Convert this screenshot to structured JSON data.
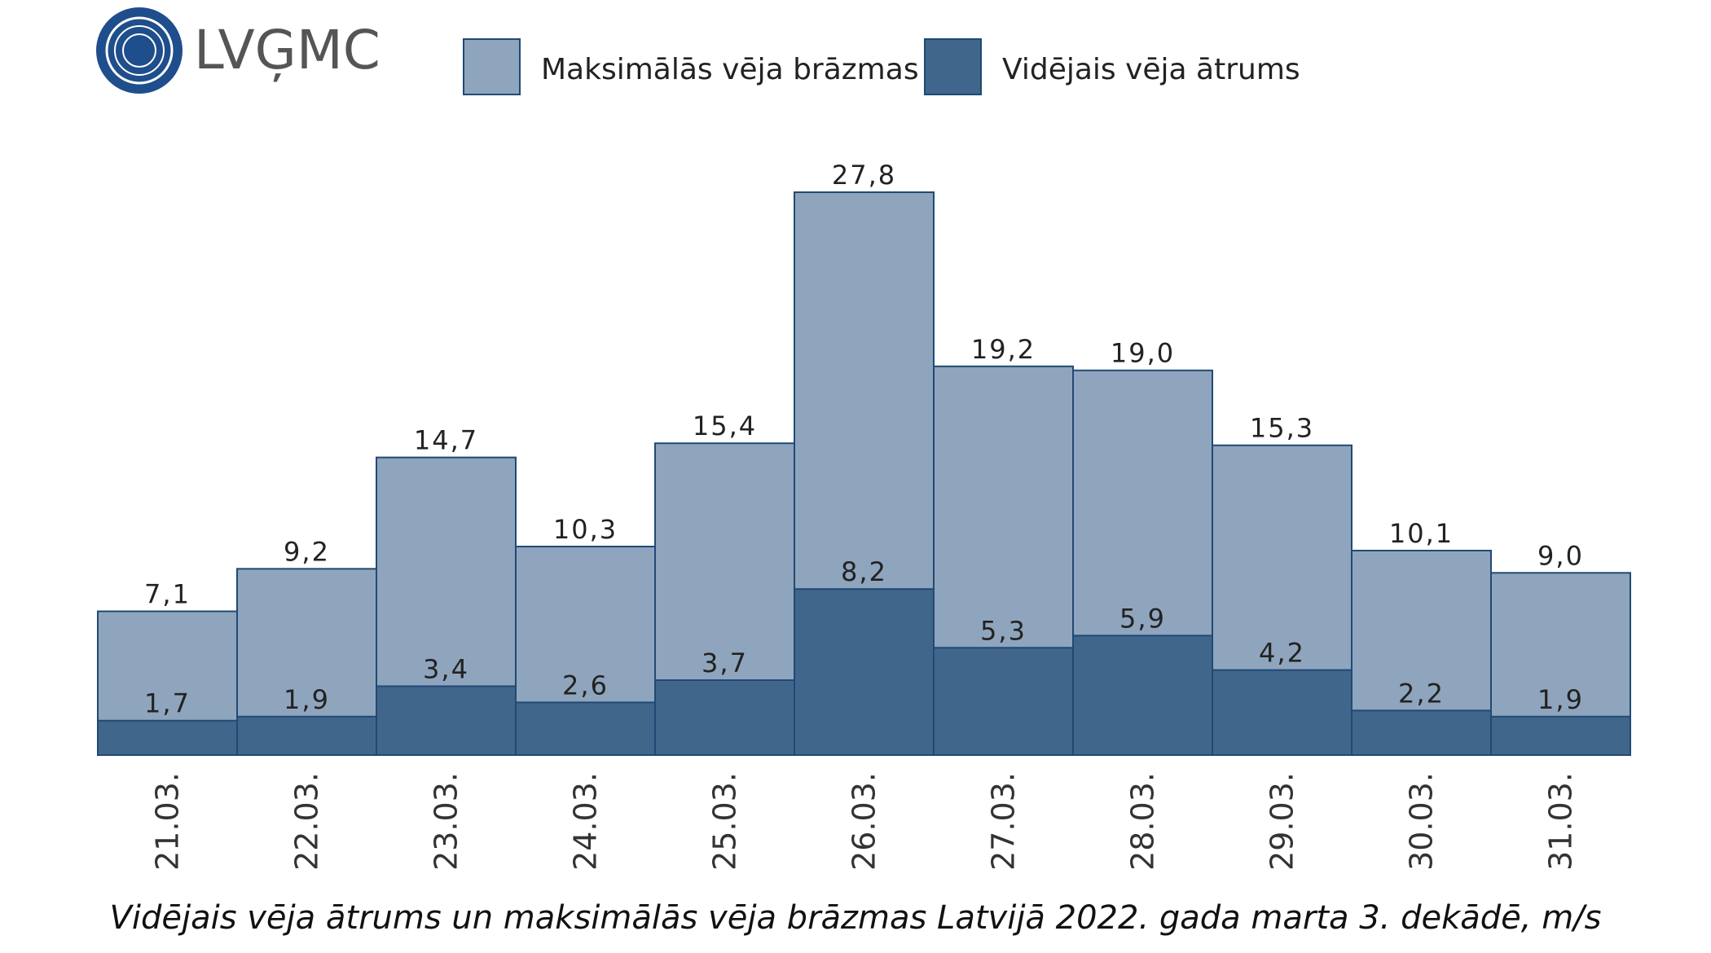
{
  "chart_data": {
    "type": "bar",
    "mode": "overlap",
    "logo": "LVĢMC",
    "title": "Vidējais vēja ātrums un maksimālās vēja brāzmas Latvijā 2022. gada marta 3. dekādē, m/s",
    "categories": [
      "21.03.",
      "22.03.",
      "23.03.",
      "24.03.",
      "25.03.",
      "26.03.",
      "27.03.",
      "28.03.",
      "29.03.",
      "30.03.",
      "31.03."
    ],
    "series": [
      {
        "name": "Maksimālās vēja brāzmas",
        "color": "#8fa5bd",
        "values": [
          7.1,
          9.2,
          14.7,
          10.3,
          15.4,
          27.8,
          19.2,
          19.0,
          15.3,
          10.1,
          9.0
        ],
        "value_labels": [
          "7,1",
          "9,2",
          "14,7",
          "10,3",
          "15,4",
          "27,8",
          "19,2",
          "19,0",
          "15,3",
          "10,1",
          "9,0"
        ]
      },
      {
        "name": "Vidējais vēja ātrums",
        "color": "#41668c",
        "values": [
          1.7,
          1.9,
          3.4,
          2.6,
          3.7,
          8.2,
          5.3,
          5.9,
          4.2,
          2.2,
          1.9
        ],
        "value_labels": [
          "1,7",
          "1,9",
          "3,4",
          "2,6",
          "3,7",
          "8,2",
          "5,3",
          "5,9",
          "4,2",
          "2,2",
          "1,9"
        ]
      }
    ]
  }
}
